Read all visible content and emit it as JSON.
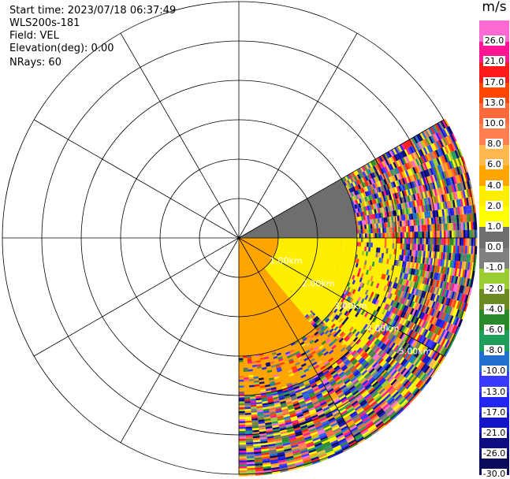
{
  "header": {
    "start_time": "Start time: 2023/07/18 06:37:49",
    "instrument": "WLS200s-181",
    "field": "Field: VEL",
    "elevation": "Elevation(deg): 0.00",
    "nrays": "NRays: 60"
  },
  "chart_data": {
    "type": "heatmap",
    "subtype": "polar-ppi",
    "range_rings_km": [
      1.0,
      2.0,
      3.0,
      4.0,
      5.0
    ],
    "ring_labels": [
      "1.00km",
      "2.00km",
      "3.00km",
      "4.00km",
      "5.00km"
    ],
    "max_range_km": 6.0,
    "spokes_deg": [
      0,
      30,
      60,
      90,
      120,
      150,
      180,
      210,
      240,
      270,
      300,
      330
    ],
    "data_sector_deg": [
      60,
      180
    ],
    "n_rays": 60,
    "colorbar": {
      "unit": "m/s",
      "levels": [
        -30.0,
        -26.0,
        -21.0,
        -17.0,
        -13.0,
        -10.0,
        -8.0,
        -6.0,
        -4.0,
        -2.0,
        -1.0,
        0.0,
        1.0,
        2.0,
        4.0,
        6.0,
        8.0,
        10.0,
        13.0,
        17.0,
        21.0,
        26.0
      ],
      "tick_labels": [
        "-30.0",
        "-26.0",
        "-21.0",
        "-17.0",
        "-13.0",
        "-10.0",
        "-8.0",
        "-6.0",
        "-4.0",
        "-2.0",
        "-1.0",
        "0.0",
        "1.0",
        "2.0",
        "4.0",
        "6.0",
        "8.0",
        "10.0",
        "13.0",
        "17.0",
        "21.0",
        "26.0"
      ],
      "colors": [
        "#0a0a5a",
        "#0d0d82",
        "#1515c8",
        "#2424f0",
        "#3a3aff",
        "#2070d0",
        "#1e9e5a",
        "#2a8a2a",
        "#6e8a22",
        "#9acd32",
        "#808080",
        "#6e6e6e",
        "#ffff00",
        "#ffee00",
        "#ffa500",
        "#ffb84d",
        "#ff7f50",
        "#ff6a3d",
        "#ff4500",
        "#ff1a1a",
        "#ff1493",
        "#ff69d4"
      ]
    },
    "field_regions": [
      {
        "name": "near-bright-yellow",
        "az": [
          90,
          180
        ],
        "r_km": [
          0.0,
          1.0
        ],
        "value": 4.5
      },
      {
        "name": "inner-orange",
        "az": [
          140,
          180
        ],
        "r_km": [
          1.0,
          3.2
        ],
        "value": 5.0
      },
      {
        "name": "mid-yellow",
        "az": [
          90,
          140
        ],
        "r_km": [
          1.0,
          2.6
        ],
        "value": 3.0
      },
      {
        "name": "grey-band",
        "az": [
          60,
          90
        ],
        "r_km": [
          0.0,
          3.0
        ],
        "value": 0.0
      },
      {
        "name": "far-yellow",
        "az": [
          90,
          135
        ],
        "r_km": [
          2.6,
          4.2
        ],
        "value": 2.5
      },
      {
        "name": "orange-far",
        "az": [
          135,
          180
        ],
        "r_km": [
          3.2,
          4.0
        ],
        "value": 5.5
      },
      {
        "name": "noise",
        "az": [
          60,
          180
        ],
        "r_km": [
          4.0,
          6.0
        ],
        "value": null
      }
    ]
  }
}
